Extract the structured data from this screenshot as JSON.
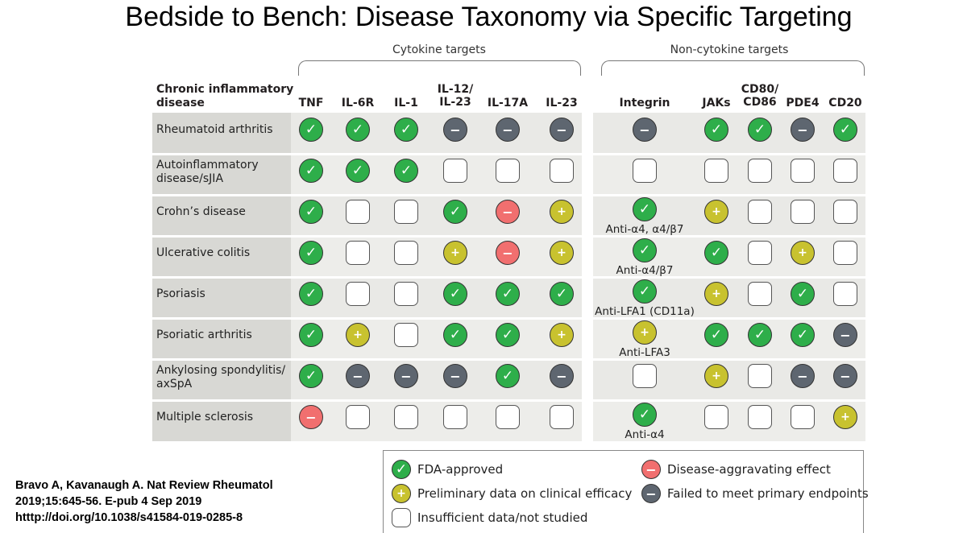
{
  "title": "Bedside to Bench: Disease Taxonomy via Specific Targeting",
  "groups": {
    "cytokine": "Cytokine targets",
    "non_cytokine": "Non-cytokine targets"
  },
  "disease_header": [
    "Chronic inflammatory",
    "disease"
  ],
  "columns": [
    [
      "TNF"
    ],
    [
      "IL-6R"
    ],
    [
      "IL-1"
    ],
    [
      "IL-12/",
      "IL-23"
    ],
    [
      "IL-17A"
    ],
    [
      "IL-23"
    ],
    [
      "Integrin"
    ],
    [
      "JAKs"
    ],
    [
      "CD80/",
      "CD86"
    ],
    [
      "PDE4"
    ],
    [
      "CD20"
    ]
  ],
  "rows": [
    {
      "name": [
        "Rheumatoid arthritis"
      ],
      "cells": [
        "fda",
        "fda",
        "fda",
        "fail",
        "fail",
        "fail",
        "fail",
        "fda",
        "fda",
        "fail",
        "fda"
      ],
      "note": ""
    },
    {
      "name": [
        "Autoinflammatory",
        "disease/sJIA"
      ],
      "cells": [
        "fda",
        "fda",
        "fda",
        "ins",
        "ins",
        "ins",
        "ins",
        "ins",
        "ins",
        "ins",
        "ins"
      ],
      "note": ""
    },
    {
      "name": [
        "Crohn’s disease"
      ],
      "cells": [
        "fda",
        "ins",
        "ins",
        "fda",
        "agg",
        "pre",
        "fda",
        "pre",
        "ins",
        "ins",
        "ins"
      ],
      "note": "Anti-α4, α4/β7"
    },
    {
      "name": [
        "Ulcerative colitis"
      ],
      "cells": [
        "fda",
        "ins",
        "ins",
        "pre",
        "agg",
        "pre",
        "fda",
        "fda",
        "ins",
        "pre",
        "ins"
      ],
      "note": "Anti-α4/β7"
    },
    {
      "name": [
        "Psoriasis"
      ],
      "cells": [
        "fda",
        "ins",
        "ins",
        "fda",
        "fda",
        "fda",
        "fda",
        "pre",
        "ins",
        "fda",
        "ins"
      ],
      "note": "Anti-LFA1 (CD11a)"
    },
    {
      "name": [
        "Psoriatic arthritis"
      ],
      "cells": [
        "fda",
        "pre",
        "ins",
        "fda",
        "fda",
        "pre",
        "pre",
        "fda",
        "fda",
        "fda",
        "fail"
      ],
      "note": "Anti-LFA3"
    },
    {
      "name": [
        "Ankylosing spondylitis/",
        "axSpA"
      ],
      "cells": [
        "fda",
        "fail",
        "fail",
        "fail",
        "fda",
        "fail",
        "ins",
        "pre",
        "ins",
        "fail",
        "fail"
      ],
      "note": ""
    },
    {
      "name": [
        "Multiple sclerosis"
      ],
      "cells": [
        "agg",
        "ins",
        "ins",
        "ins",
        "ins",
        "ins",
        "fda",
        "ins",
        "ins",
        "ins",
        "pre"
      ],
      "note": "Anti-α4"
    }
  ],
  "symbols": {
    "fda": "✓",
    "pre": "+",
    "agg": "−",
    "fail": "−",
    "ins": ""
  },
  "legend": {
    "fda": "FDA-approved",
    "pre": "Preliminary data on clinical efficacy",
    "ins": "Insufficient data/not studied",
    "agg": "Disease-aggravating effect",
    "fail": "Failed to meet primary endpoints"
  },
  "colors": {
    "fda": "#2eae4a",
    "pre": "#c8c22f",
    "agg": "#f16f6f",
    "fail": "#5e6670",
    "ins": "#ffffff"
  },
  "citation": [
    "Bravo A, Kavanaugh A. Nat Review Rheumatol",
    "2019;15:645-56. E-pub 4 Sep 2019",
    "htttp://doi.org/10.1038/s41584-019-0285-8"
  ]
}
